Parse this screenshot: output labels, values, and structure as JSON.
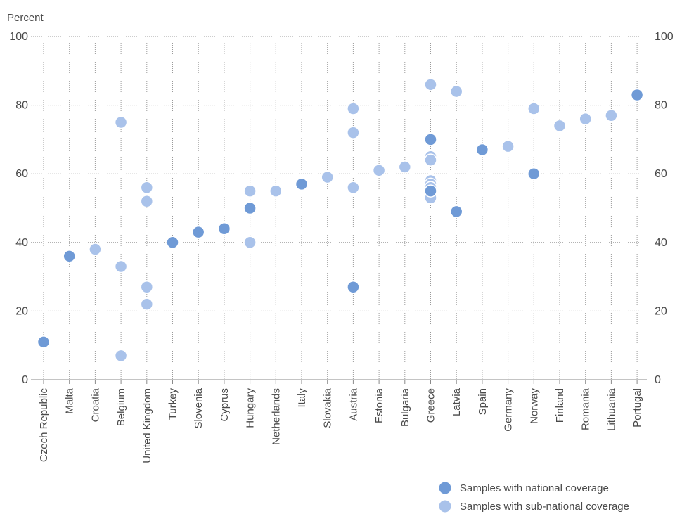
{
  "chart_data": {
    "type": "scatter",
    "ylabel": "Percent",
    "ylim": [
      0,
      100
    ],
    "yticks": [
      0,
      20,
      40,
      60,
      80,
      100
    ],
    "grid": true,
    "legend_position": "bottom-right",
    "categories": [
      "Czech Republic",
      "Malta",
      "Croatia",
      "Belgium",
      "United Kingdom",
      "Turkey",
      "Slovenia",
      "Cyprus",
      "Hungary",
      "Netherlands",
      "Italy",
      "Slovakia",
      "Austria",
      "Estonia",
      "Bulgaria",
      "Greece",
      "Latvia",
      "Spain",
      "Germany",
      "Norway",
      "Finland",
      "Romania",
      "Lithuania",
      "Portugal"
    ],
    "series": [
      {
        "name": "Samples with national coverage",
        "color": "#6f9ad6",
        "points": [
          {
            "x": "Czech Republic",
            "y": 11
          },
          {
            "x": "Malta",
            "y": 36
          },
          {
            "x": "Turkey",
            "y": 40
          },
          {
            "x": "Slovenia",
            "y": 43
          },
          {
            "x": "Cyprus",
            "y": 44
          },
          {
            "x": "Hungary",
            "y": 50
          },
          {
            "x": "Italy",
            "y": 57
          },
          {
            "x": "Austria",
            "y": 27
          },
          {
            "x": "Greece",
            "y": 70
          },
          {
            "x": "Greece",
            "y": 55
          },
          {
            "x": "Latvia",
            "y": 49
          },
          {
            "x": "Spain",
            "y": 67
          },
          {
            "x": "Norway",
            "y": 60
          },
          {
            "x": "Portugal",
            "y": 83
          }
        ]
      },
      {
        "name": "Samples with sub-national coverage",
        "color": "#a9c2ea",
        "points": [
          {
            "x": "Croatia",
            "y": 38
          },
          {
            "x": "Belgium",
            "y": 75
          },
          {
            "x": "Belgium",
            "y": 33
          },
          {
            "x": "Belgium",
            "y": 7
          },
          {
            "x": "United Kingdom",
            "y": 56
          },
          {
            "x": "United Kingdom",
            "y": 52
          },
          {
            "x": "United Kingdom",
            "y": 27
          },
          {
            "x": "United Kingdom",
            "y": 22
          },
          {
            "x": "Hungary",
            "y": 55
          },
          {
            "x": "Hungary",
            "y": 40
          },
          {
            "x": "Netherlands",
            "y": 55
          },
          {
            "x": "Slovakia",
            "y": 59
          },
          {
            "x": "Austria",
            "y": 79
          },
          {
            "x": "Austria",
            "y": 72
          },
          {
            "x": "Austria",
            "y": 56
          },
          {
            "x": "Estonia",
            "y": 61
          },
          {
            "x": "Bulgaria",
            "y": 62
          },
          {
            "x": "Greece",
            "y": 86
          },
          {
            "x": "Greece",
            "y": 65
          },
          {
            "x": "Greece",
            "y": 64
          },
          {
            "x": "Greece",
            "y": 58
          },
          {
            "x": "Greece",
            "y": 57
          },
          {
            "x": "Greece",
            "y": 56
          },
          {
            "x": "Greece",
            "y": 53
          },
          {
            "x": "Latvia",
            "y": 84
          },
          {
            "x": "Germany",
            "y": 68
          },
          {
            "x": "Norway",
            "y": 79
          },
          {
            "x": "Finland",
            "y": 74
          },
          {
            "x": "Romania",
            "y": 76
          },
          {
            "x": "Lithuania",
            "y": 77
          }
        ]
      }
    ]
  }
}
